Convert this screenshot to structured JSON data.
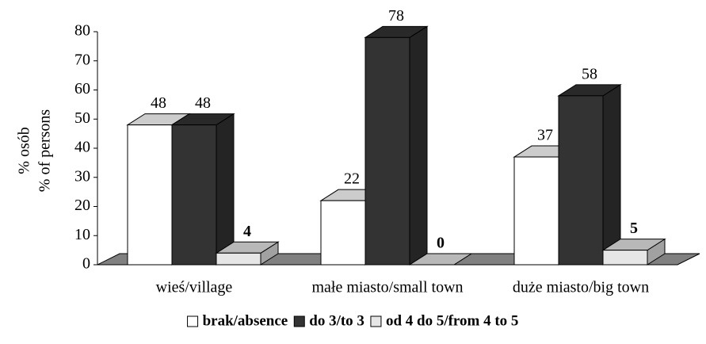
{
  "chart_data": {
    "type": "bar3d",
    "ylabel": [
      "% osób",
      "% of persons"
    ],
    "categories": [
      "wieś/village",
      "małe miasto/small town",
      "duże miasto/big town"
    ],
    "series": [
      {
        "name": "brak/absence",
        "color": "#ffffff",
        "values": [
          48,
          22,
          37
        ]
      },
      {
        "name": "do 3/to 3",
        "color": "#333333",
        "values": [
          48,
          78,
          58
        ]
      },
      {
        "name": "od 4 do 5/from 4 to 5",
        "color": "#e6e6e6",
        "values": [
          4,
          0,
          5
        ],
        "label_bold": true
      }
    ],
    "ylim": [
      0,
      80
    ],
    "yticks": [
      0,
      10,
      20,
      30,
      40,
      50,
      60,
      70,
      80
    ],
    "floor_color": "#808080",
    "legend": "bottom"
  }
}
